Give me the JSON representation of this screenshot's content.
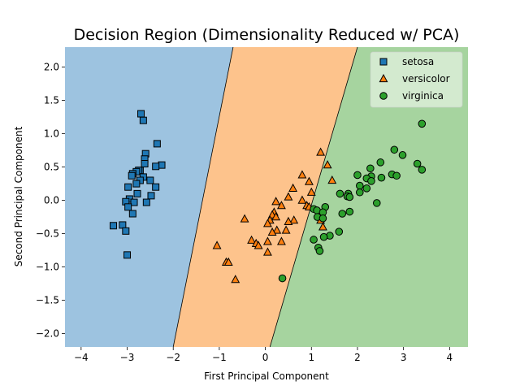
{
  "chart_data": {
    "type": "scatter",
    "title": "Decision Region (Dimensionality Reduced w/ PCA)",
    "xlabel": "First Principal Component",
    "ylabel": "Second Principal Component",
    "xlim": [
      -4.35,
      4.4
    ],
    "ylim": [
      -2.2,
      2.3
    ],
    "xticks": [
      -4,
      -3,
      -2,
      -1,
      0,
      1,
      2,
      3,
      4
    ],
    "yticks": [
      -2.0,
      -1.5,
      -1.0,
      -0.5,
      0.0,
      0.5,
      1.0,
      1.5,
      2.0
    ],
    "xtick_labels": [
      "−4",
      "−3",
      "−2",
      "−1",
      "0",
      "1",
      "2",
      "3",
      "4"
    ],
    "ytick_labels": [
      "−2.0",
      "−1.5",
      "−1.0",
      "−0.5",
      "0.0",
      "0.5",
      "1.0",
      "1.5",
      "2.0"
    ],
    "grid": false,
    "legend_position": "top-right",
    "regions": [
      {
        "class": "setosa",
        "color": "#9dc3e0"
      },
      {
        "class": "versicolor",
        "color": "#fdc38c"
      },
      {
        "class": "virginica",
        "color": "#a6d49f"
      }
    ],
    "boundaries": [
      {
        "between": [
          "setosa",
          "versicolor"
        ],
        "points": [
          [
            -2.0,
            -2.2
          ],
          [
            -0.7,
            2.3
          ]
        ]
      },
      {
        "between": [
          "versicolor",
          "virginica"
        ],
        "points": [
          [
            0.1,
            -2.2
          ],
          [
            2.0,
            2.3
          ]
        ]
      }
    ],
    "series": [
      {
        "name": "setosa",
        "marker": "square",
        "color": "#1f77b4",
        "points": [
          [
            -2.7,
            1.3
          ],
          [
            -2.65,
            1.2
          ],
          [
            -2.35,
            0.85
          ],
          [
            -2.6,
            0.7
          ],
          [
            -2.62,
            0.62
          ],
          [
            -2.62,
            0.55
          ],
          [
            -2.25,
            0.53
          ],
          [
            -2.38,
            0.51
          ],
          [
            -2.72,
            0.45
          ],
          [
            -2.75,
            0.45
          ],
          [
            -2.8,
            0.43
          ],
          [
            -2.88,
            0.4
          ],
          [
            -2.9,
            0.37
          ],
          [
            -2.65,
            0.35
          ],
          [
            -2.72,
            0.3
          ],
          [
            -2.5,
            0.3
          ],
          [
            -2.8,
            0.25
          ],
          [
            -2.98,
            0.2
          ],
          [
            -2.38,
            0.2
          ],
          [
            -2.78,
            0.1
          ],
          [
            -2.48,
            0.07
          ],
          [
            -2.95,
            0.02
          ],
          [
            -3.03,
            -0.02
          ],
          [
            -2.85,
            -0.03
          ],
          [
            -2.58,
            -0.03
          ],
          [
            -2.98,
            -0.1
          ],
          [
            -2.88,
            -0.2
          ],
          [
            -3.3,
            -0.38
          ],
          [
            -3.1,
            -0.37
          ],
          [
            -3.03,
            -0.46
          ],
          [
            -3.0,
            -0.82
          ]
        ]
      },
      {
        "name": "versicolor",
        "marker": "triangle",
        "color": "#ff7f0e",
        "points": [
          [
            1.2,
            0.72
          ],
          [
            1.35,
            0.53
          ],
          [
            0.8,
            0.38
          ],
          [
            1.45,
            0.3
          ],
          [
            0.95,
            0.28
          ],
          [
            0.6,
            0.18
          ],
          [
            1.0,
            0.12
          ],
          [
            0.5,
            0.05
          ],
          [
            0.23,
            -0.02
          ],
          [
            0.8,
            0.0
          ],
          [
            0.9,
            -0.08
          ],
          [
            0.35,
            -0.08
          ],
          [
            0.95,
            -0.1
          ],
          [
            0.19,
            -0.18
          ],
          [
            0.15,
            -0.22
          ],
          [
            0.23,
            -0.25
          ],
          [
            0.62,
            -0.3
          ],
          [
            0.5,
            -0.32
          ],
          [
            0.1,
            -0.3
          ],
          [
            0.05,
            -0.35
          ],
          [
            1.2,
            -0.3
          ],
          [
            1.25,
            -0.4
          ],
          [
            -0.45,
            -0.28
          ],
          [
            0.45,
            -0.45
          ],
          [
            0.25,
            -0.45
          ],
          [
            0.15,
            -0.48
          ],
          [
            -0.3,
            -0.6
          ],
          [
            0.35,
            -0.62
          ],
          [
            -0.2,
            -0.65
          ],
          [
            0.05,
            -0.62
          ],
          [
            -0.15,
            -0.68
          ],
          [
            -1.05,
            -0.68
          ],
          [
            0.05,
            -0.78
          ],
          [
            -0.85,
            -0.93
          ],
          [
            -0.8,
            -0.93
          ],
          [
            -0.65,
            -1.19
          ]
        ]
      },
      {
        "name": "virginica",
        "marker": "circle",
        "color": "#2ca02c",
        "points": [
          [
            3.4,
            1.15
          ],
          [
            2.8,
            0.76
          ],
          [
            2.98,
            0.68
          ],
          [
            2.5,
            0.57
          ],
          [
            3.3,
            0.55
          ],
          [
            2.28,
            0.48
          ],
          [
            3.4,
            0.46
          ],
          [
            2.75,
            0.39
          ],
          [
            2.85,
            0.37
          ],
          [
            2.0,
            0.38
          ],
          [
            2.3,
            0.36
          ],
          [
            2.52,
            0.34
          ],
          [
            2.2,
            0.33
          ],
          [
            2.3,
            0.29
          ],
          [
            2.05,
            0.22
          ],
          [
            2.2,
            0.18
          ],
          [
            1.62,
            0.1
          ],
          [
            1.8,
            0.1
          ],
          [
            2.05,
            0.12
          ],
          [
            1.78,
            0.06
          ],
          [
            1.83,
            0.05
          ],
          [
            2.42,
            -0.04
          ],
          [
            1.3,
            -0.1
          ],
          [
            1.05,
            -0.13
          ],
          [
            1.12,
            -0.15
          ],
          [
            1.25,
            -0.18
          ],
          [
            1.67,
            -0.2
          ],
          [
            1.83,
            -0.17
          ],
          [
            1.13,
            -0.25
          ],
          [
            1.25,
            -0.27
          ],
          [
            1.6,
            -0.47
          ],
          [
            1.4,
            -0.53
          ],
          [
            1.27,
            -0.55
          ],
          [
            1.05,
            -0.59
          ],
          [
            1.15,
            -0.71
          ],
          [
            1.18,
            -0.76
          ],
          [
            0.37,
            -1.17
          ]
        ]
      }
    ]
  }
}
